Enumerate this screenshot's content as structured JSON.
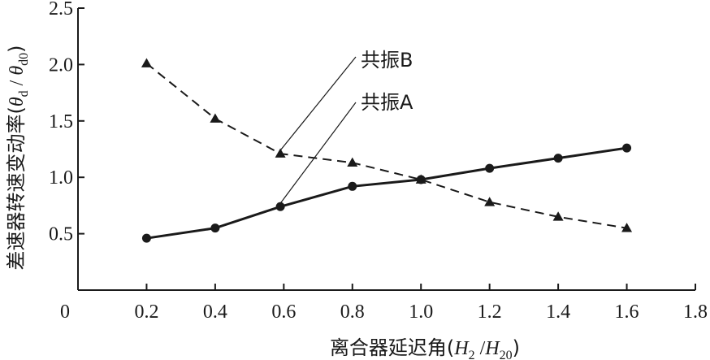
{
  "chart_data": {
    "type": "line",
    "xlabel": "离合器延迟角(H2 /H20)",
    "xlabel_parts": {
      "prefix": "离合器延迟角(",
      "v1": "H",
      "s1": "2",
      "mid": " /",
      "v2": "H",
      "s2": "20",
      "suffix": ")"
    },
    "ylabel": "差速器转速变动率(θd / θd0)",
    "ylabel_parts": {
      "prefix": "差速器转速变动率(",
      "v1": "θ",
      "s1": "d",
      "mid": " / ",
      "v2": "θ",
      "s2": "d0",
      "suffix": ")"
    },
    "xlim": [
      0,
      1.8
    ],
    "ylim": [
      0,
      2.5
    ],
    "x_ticks": [
      "0",
      "0.2",
      "0.4",
      "0.6",
      "0.8",
      "1.0",
      "1.2",
      "1.4",
      "1.6",
      "1.8"
    ],
    "y_ticks": [
      "0.5",
      "1.0",
      "1.5",
      "2.0",
      "2.5"
    ],
    "grid": false,
    "x": [
      0.2,
      0.4,
      0.59,
      0.8,
      1.0,
      1.2,
      1.4,
      1.6
    ],
    "series": [
      {
        "key": "A",
        "style": "solid",
        "marker": "circle",
        "values": [
          0.46,
          0.55,
          0.74,
          0.92,
          0.98,
          1.08,
          1.17,
          1.26
        ]
      },
      {
        "key": "B",
        "style": "dashed",
        "marker": "triangle",
        "values": [
          2.01,
          1.52,
          1.21,
          1.13,
          0.98,
          0.78,
          0.65,
          0.55
        ]
      }
    ],
    "annotations": [
      {
        "text": "共振B",
        "target_series": "B",
        "target_index": 2
      },
      {
        "text": "共振A",
        "target_series": "A",
        "target_index": 2
      }
    ]
  }
}
